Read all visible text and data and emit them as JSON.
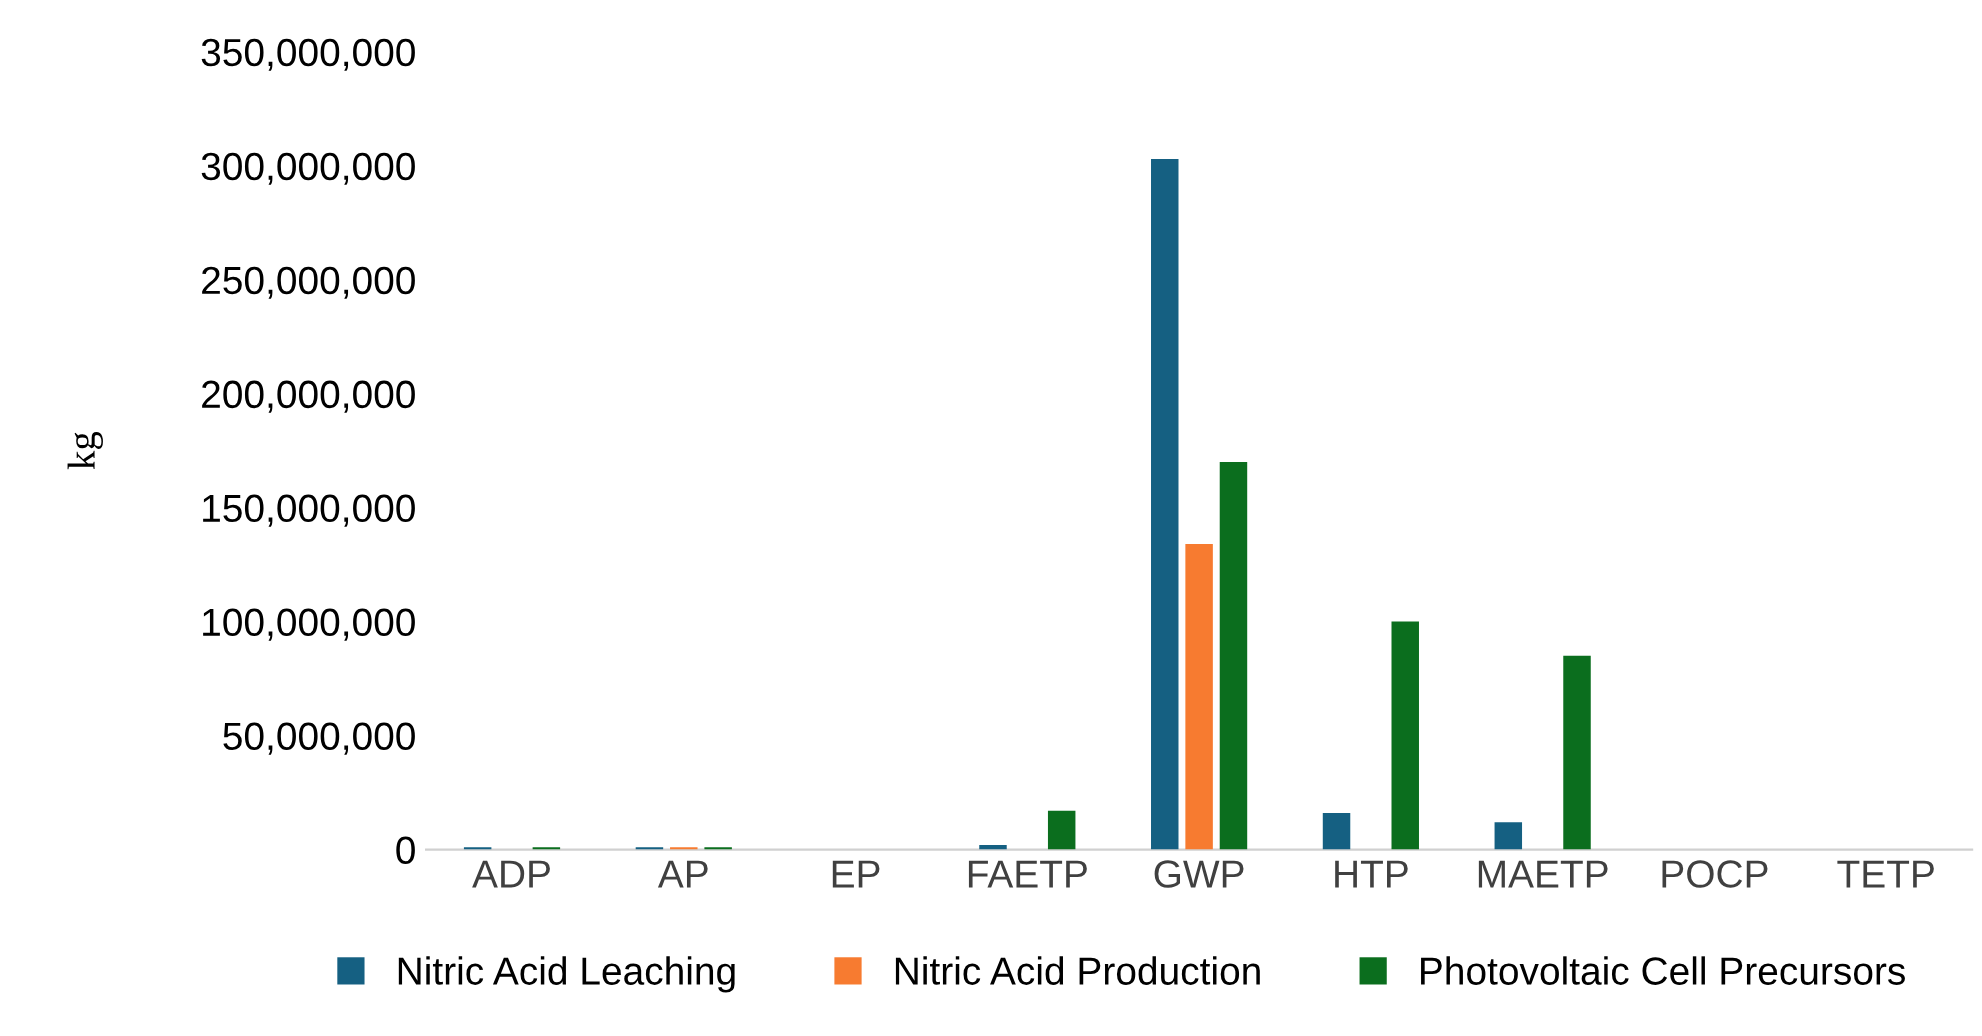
{
  "chart_data": {
    "type": "bar",
    "ylabel": "kg",
    "categories": [
      "ADP",
      "AP",
      "EP",
      "FAETP",
      "GWP",
      "HTP",
      "MAETP",
      "POCP",
      "TETP"
    ],
    "series": [
      {
        "name": "Nitric Acid Leaching",
        "color": "#156082",
        "values": [
          1000000,
          1000000,
          0,
          2000000,
          303000000,
          16000000,
          12000000,
          0,
          0
        ]
      },
      {
        "name": "Nitric Acid Production",
        "color": "#f77b30",
        "values": [
          0,
          1000000,
          0,
          0,
          134000000,
          0,
          0,
          0,
          0
        ]
      },
      {
        "name": "Photovoltaic Cell Precursors",
        "color": "#0b6e1e",
        "values": [
          1000000,
          1000000,
          0,
          17000000,
          170000000,
          100000000,
          85000000,
          0,
          0
        ]
      }
    ],
    "ylim": [
      0,
      350000000
    ],
    "yticks": [
      {
        "value": 0,
        "label": "0"
      },
      {
        "value": 50000000,
        "label": "50,000,000"
      },
      {
        "value": 100000000,
        "label": "100,000,000"
      },
      {
        "value": 150000000,
        "label": "150,000,000"
      },
      {
        "value": 200000000,
        "label": "200,000,000"
      },
      {
        "value": 250000000,
        "label": "250,000,000"
      },
      {
        "value": 300000000,
        "label": "300,000,000"
      },
      {
        "value": 350000000,
        "label": "350,000,000"
      }
    ],
    "grid": false,
    "legend": "bottom"
  }
}
